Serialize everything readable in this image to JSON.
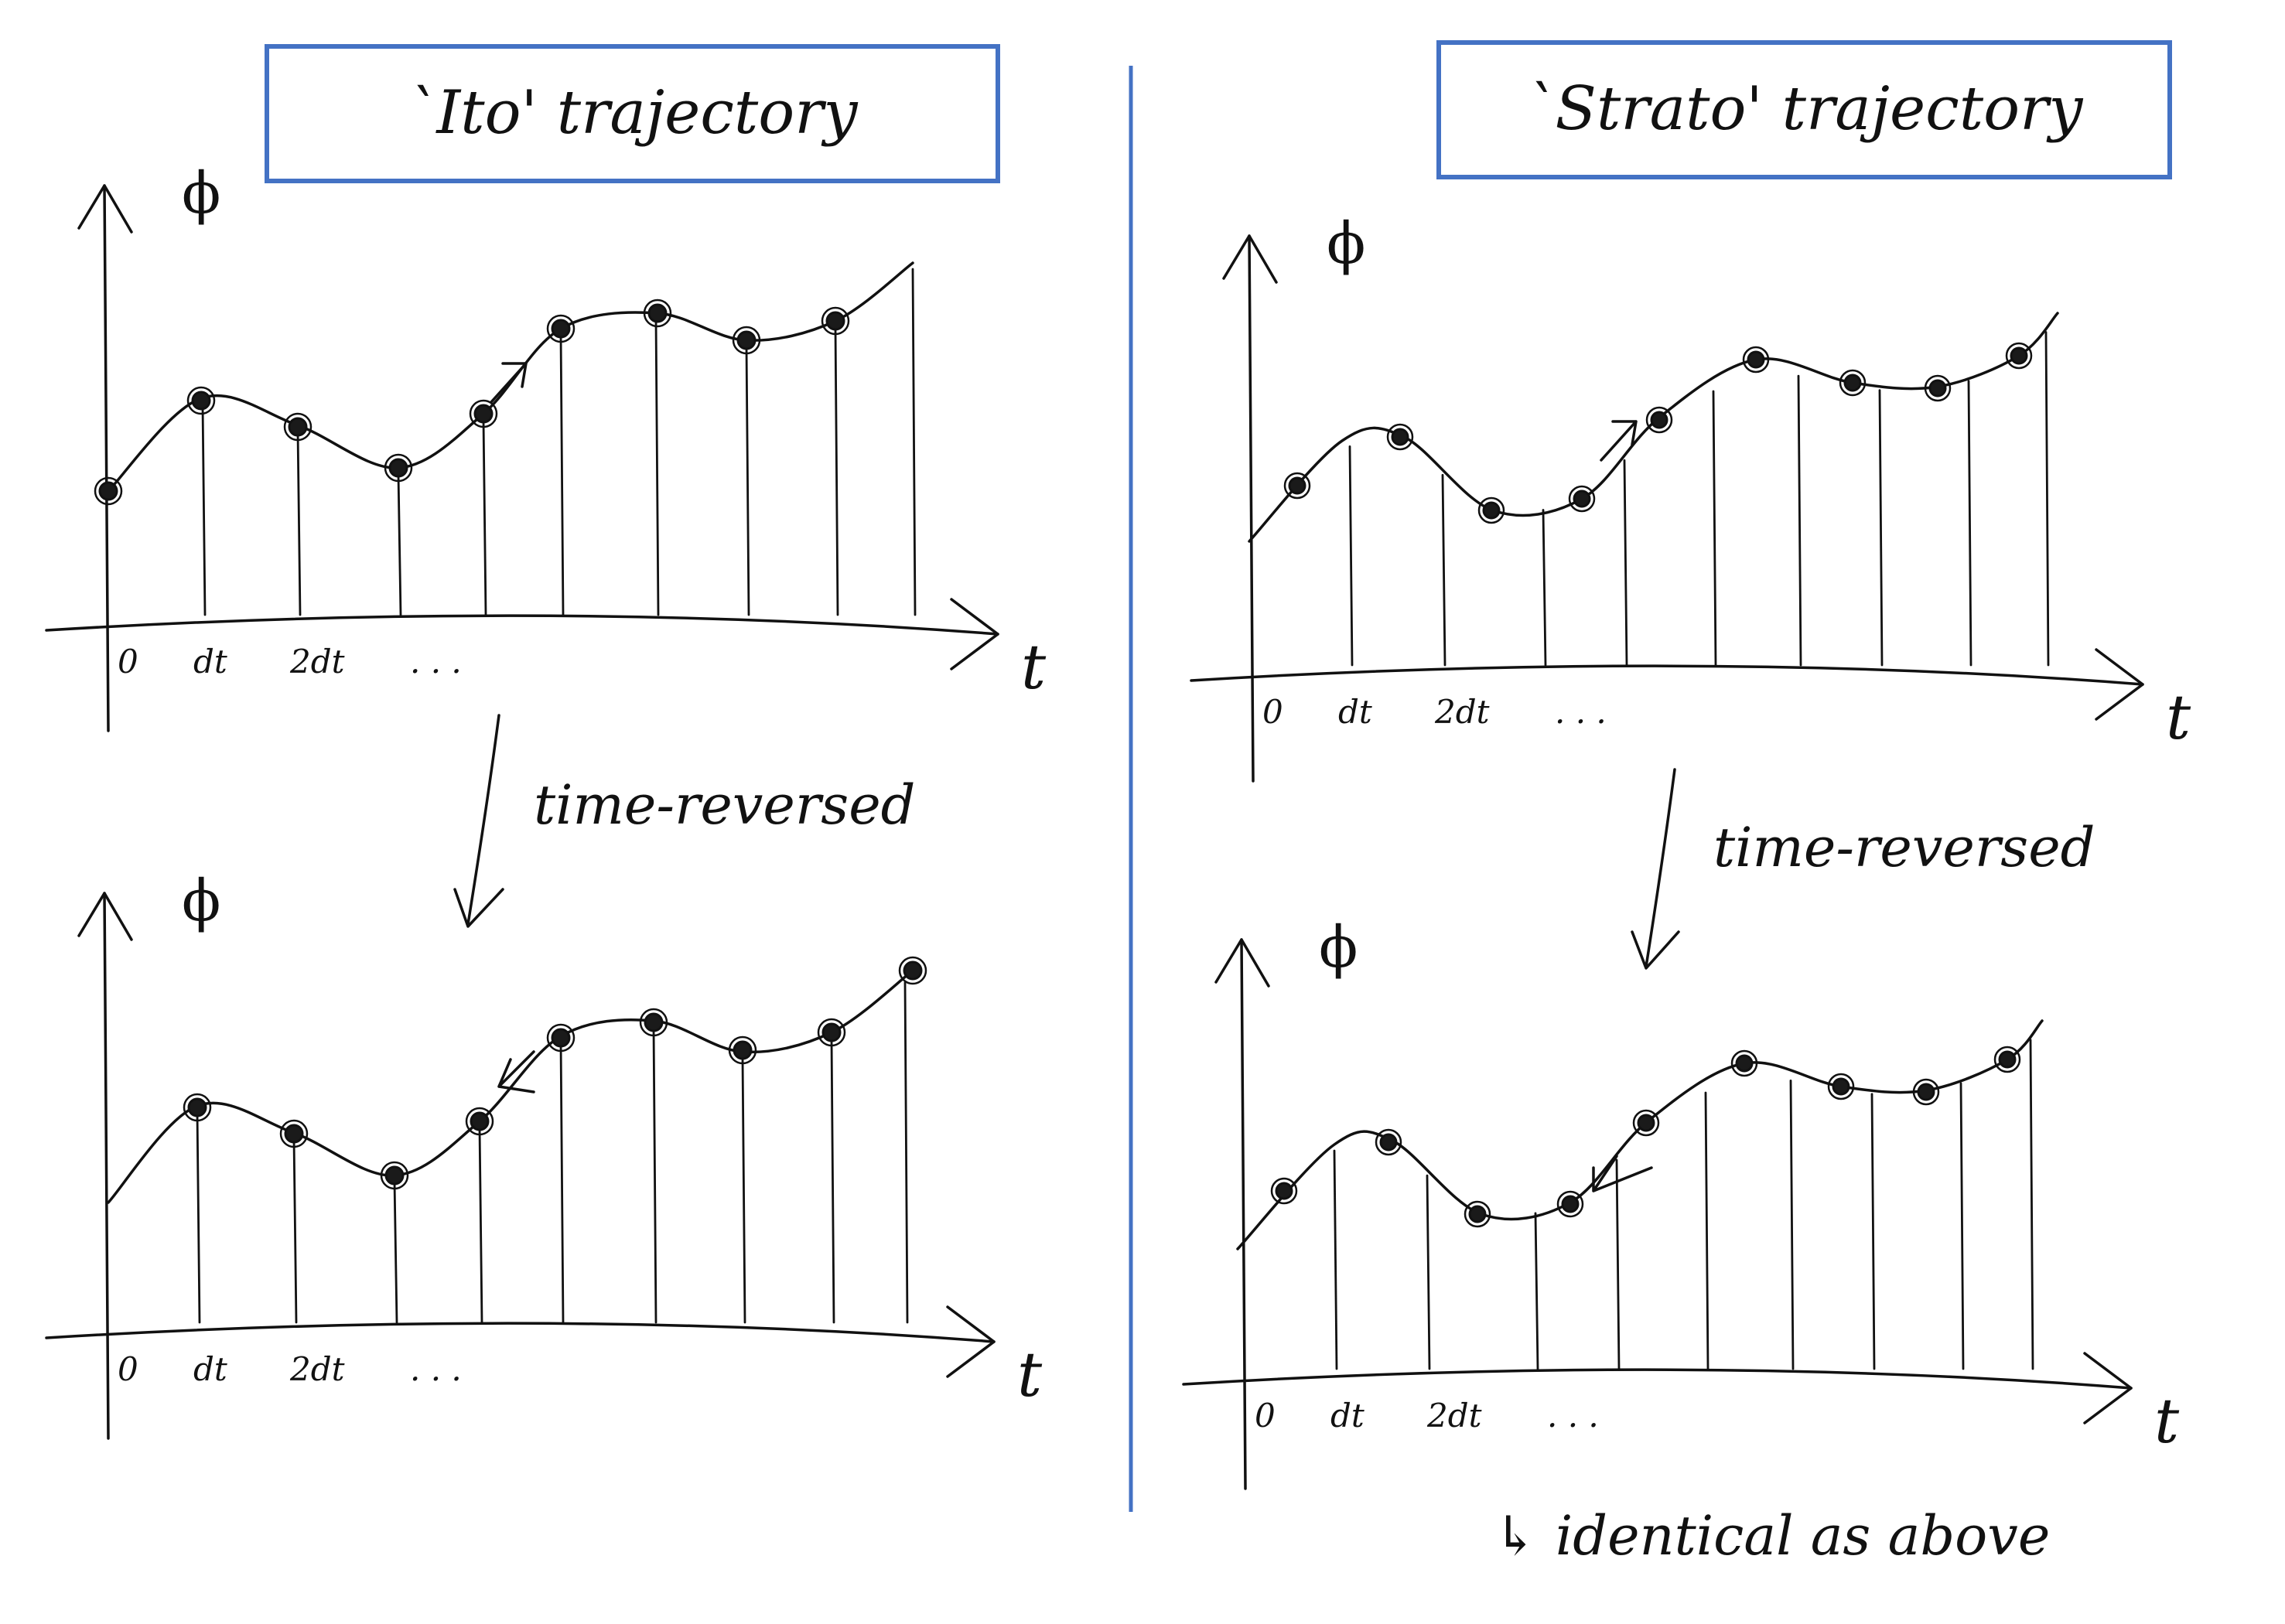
{
  "titles": {
    "left": "`Ito' trajectory",
    "right": "`Strato' trajectory"
  },
  "axis_labels": {
    "y": "ϕ",
    "x": "t"
  },
  "ticks": {
    "zero": "0",
    "dt": "dt",
    "two_dt": "2dt",
    "dots": ". . ."
  },
  "arrows": {
    "left": "time-reversed",
    "right": "time-reversed"
  },
  "note": "↳ identical as above",
  "colors": {
    "box": "#4472c4",
    "divider": "#4472c4",
    "ink": "#111111"
  }
}
